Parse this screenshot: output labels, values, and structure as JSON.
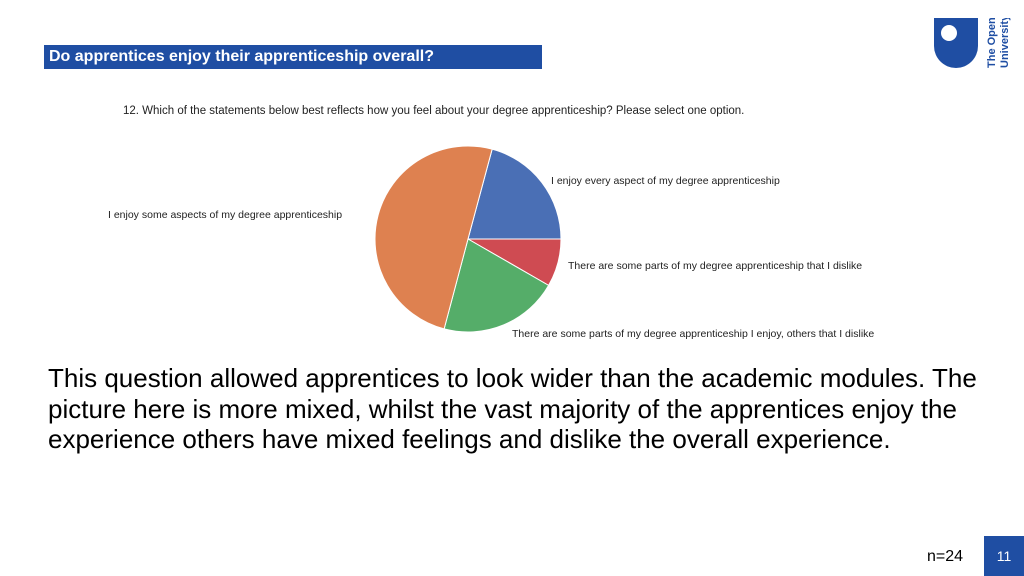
{
  "header": {
    "title": "Do apprentices enjoy their apprenticeship overall?"
  },
  "logo": {
    "line1": "The Open",
    "line2": "University"
  },
  "chart_data": {
    "type": "pie",
    "title": "12. Which of the statements below best reflects how you feel about your degree apprenticeship? Please select one option.",
    "slices": [
      {
        "label": "I enjoy every aspect of my degree apprenticeship",
        "value": 20.8,
        "color": "#4a6fb5"
      },
      {
        "label": "There are some parts of my degree apprenticeship that I dislike",
        "value": 8.3,
        "color": "#cf4b52"
      },
      {
        "label": "There are some parts of my degree apprenticeship I enjoy, others that I dislike",
        "value": 20.8,
        "color": "#55ad69"
      },
      {
        "label": "I enjoy some aspects of my degree apprenticeship",
        "value": 50.0,
        "color": "#de8150"
      }
    ]
  },
  "body": {
    "text": "This question allowed apprentices to look wider than the academic modules. The picture here is more mixed, whilst the vast majority of the apprentices enjoy the experience others have mixed feelings and dislike the overall experience."
  },
  "footer": {
    "n": "n=24",
    "page": "11"
  }
}
